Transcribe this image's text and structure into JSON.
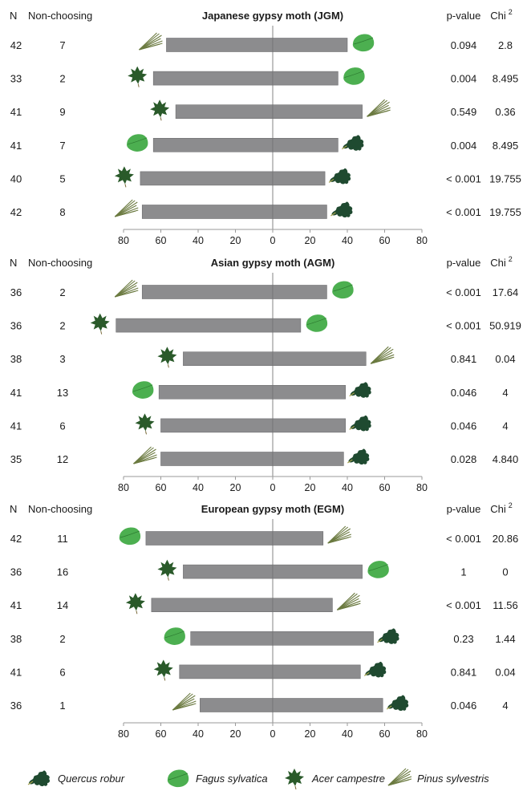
{
  "colors": {
    "bar": "#8c8c8e",
    "bar_edge": "#6e6e70",
    "axis": "#9a9a9a",
    "oak": "#1f4a30",
    "beech": "#4caf50",
    "maple": "#2a5a2a",
    "pine": "#6b7a40"
  },
  "legend": [
    {
      "species": "quercus",
      "label": "Quercus robur",
      "icon": "oak-leaf-icon"
    },
    {
      "species": "fagus",
      "label": "Fagus sylvatica",
      "icon": "beech-leaf-icon"
    },
    {
      "species": "acer",
      "label": "Acer campestre",
      "icon": "maple-leaf-icon"
    },
    {
      "species": "pinus",
      "label": "Pinus sylvestris",
      "icon": "pine-needles-icon"
    }
  ],
  "chart_data": [
    {
      "type": "bar",
      "orientation": "horizontal-diverging",
      "title": "Japanese gypsy moth (JGM)",
      "header_left": [
        "N",
        "Non-choosing"
      ],
      "header_right": [
        "p-value",
        "Chi"
      ],
      "chi_superscript": "2",
      "xlim": [
        -80,
        80
      ],
      "xticks": [
        "80",
        "60",
        "40",
        "20",
        "0",
        "20",
        "40",
        "60",
        "80"
      ],
      "rows": [
        {
          "n": "42",
          "nonchoosing": "7",
          "left": 57,
          "right": 40,
          "left_species": "pinus",
          "right_species": "fagus",
          "p": "0.094",
          "chi": "2.8"
        },
        {
          "n": "33",
          "nonchoosing": "2",
          "left": 64,
          "right": 35,
          "left_species": "acer",
          "right_species": "fagus",
          "p": "0.004",
          "chi": "8.495"
        },
        {
          "n": "41",
          "nonchoosing": "9",
          "left": 52,
          "right": 48,
          "left_species": "acer",
          "right_species": "pinus",
          "p": "0.549",
          "chi": "0.36"
        },
        {
          "n": "41",
          "nonchoosing": "7",
          "left": 64,
          "right": 35,
          "left_species": "fagus",
          "right_species": "quercus",
          "p": "0.004",
          "chi": "8.495"
        },
        {
          "n": "40",
          "nonchoosing": "5",
          "left": 71,
          "right": 28,
          "left_species": "acer",
          "right_species": "quercus",
          "p": "< 0.001",
          "chi": "19.755"
        },
        {
          "n": "42",
          "nonchoosing": "8",
          "left": 70,
          "right": 29,
          "left_species": "pinus",
          "right_species": "quercus",
          "p": "< 0.001",
          "chi": "19.755"
        }
      ]
    },
    {
      "type": "bar",
      "orientation": "horizontal-diverging",
      "title": "Asian gypsy moth (AGM)",
      "header_left": [
        "N",
        "Non-choosing"
      ],
      "header_right": [
        "p-value",
        "Chi"
      ],
      "chi_superscript": "2",
      "xlim": [
        -80,
        80
      ],
      "xticks": [
        "80",
        "60",
        "40",
        "20",
        "0",
        "20",
        "40",
        "60",
        "80"
      ],
      "rows": [
        {
          "n": "36",
          "nonchoosing": "2",
          "left": 70,
          "right": 29,
          "left_species": "pinus",
          "right_species": "fagus",
          "p": "< 0.001",
          "chi": "17.64"
        },
        {
          "n": "36",
          "nonchoosing": "2",
          "left": 84,
          "right": 15,
          "left_species": "acer",
          "right_species": "fagus",
          "p": "< 0.001",
          "chi": "50.919"
        },
        {
          "n": "38",
          "nonchoosing": "3",
          "left": 48,
          "right": 50,
          "left_species": "acer",
          "right_species": "pinus",
          "p": "0.841",
          "chi": "0.04"
        },
        {
          "n": "41",
          "nonchoosing": "13",
          "left": 61,
          "right": 39,
          "left_species": "fagus",
          "right_species": "quercus",
          "p": "0.046",
          "chi": "4"
        },
        {
          "n": "41",
          "nonchoosing": "6",
          "left": 60,
          "right": 39,
          "left_species": "acer",
          "right_species": "quercus",
          "p": "0.046",
          "chi": "4"
        },
        {
          "n": "35",
          "nonchoosing": "12",
          "left": 60,
          "right": 38,
          "left_species": "pinus",
          "right_species": "quercus",
          "p": "0.028",
          "chi": "4.840"
        }
      ]
    },
    {
      "type": "bar",
      "orientation": "horizontal-diverging",
      "title": "European gypsy moth (EGM)",
      "header_left": [
        "N",
        "Non-choosing"
      ],
      "header_right": [
        "p-value",
        "Chi"
      ],
      "chi_superscript": "2",
      "xlim": [
        -80,
        80
      ],
      "xticks": [
        "80",
        "60",
        "40",
        "20",
        "0",
        "20",
        "40",
        "60",
        "80"
      ],
      "rows": [
        {
          "n": "42",
          "nonchoosing": "11",
          "left": 68,
          "right": 27,
          "left_species": "fagus",
          "right_species": "pinus",
          "p": "< 0.001",
          "chi": "20.86"
        },
        {
          "n": "36",
          "nonchoosing": "16",
          "left": 48,
          "right": 48,
          "left_species": "acer",
          "right_species": "fagus",
          "p": "1",
          "chi": "0"
        },
        {
          "n": "41",
          "nonchoosing": "14",
          "left": 65,
          "right": 32,
          "left_species": "acer",
          "right_species": "pinus",
          "p": "< 0.001",
          "chi": "11.56"
        },
        {
          "n": "38",
          "nonchoosing": "2",
          "left": 44,
          "right": 54,
          "left_species": "fagus",
          "right_species": "quercus",
          "p": "0.23",
          "chi": "1.44"
        },
        {
          "n": "41",
          "nonchoosing": "6",
          "left": 50,
          "right": 47,
          "left_species": "acer",
          "right_species": "quercus",
          "p": "0.841",
          "chi": "0.04"
        },
        {
          "n": "36",
          "nonchoosing": "1",
          "left": 39,
          "right": 59,
          "left_species": "pinus",
          "right_species": "quercus",
          "p": "0.046",
          "chi": "4"
        }
      ]
    }
  ]
}
